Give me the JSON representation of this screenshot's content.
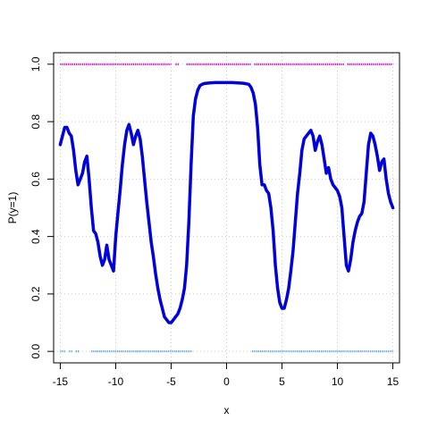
{
  "chart_data": {
    "type": "line",
    "title": "",
    "xlabel": "x",
    "ylabel": "P(y=1)",
    "xlim": [
      -15.6,
      15.6
    ],
    "ylim": [
      -0.04,
      1.04
    ],
    "xticks": [
      -15,
      -10,
      -5,
      0,
      5,
      10,
      15
    ],
    "xtick_labels": [
      "-15",
      "-10",
      "-5",
      "0",
      "5",
      "10",
      "15"
    ],
    "yticks": [
      0.0,
      0.2,
      0.4,
      0.6,
      0.8,
      1.0
    ],
    "ytick_labels": [
      "0.0",
      "0.2",
      "0.4",
      "0.6",
      "0.8",
      "1.0"
    ],
    "grid": true,
    "colors": {
      "curve": "#0000dd",
      "positive": "#dd00dd",
      "negative": "#66aadd",
      "grid": "#cccccc"
    },
    "series": [
      {
        "x": [
          -15,
          -14.8,
          -14.6,
          -14.4,
          -14.2,
          -14,
          -13.8,
          -13.6,
          -13.4,
          -13.2,
          -13,
          -12.8,
          -12.6,
          -12.4,
          -12.2,
          -12,
          -11.8,
          -11.6,
          -11.4,
          -11.2,
          -11,
          -10.8,
          -10.6,
          -10.4,
          -10.2,
          -10,
          -9.8,
          -9.6,
          -9.4,
          -9.2,
          -9,
          -8.8,
          -8.6,
          -8.4,
          -8.2,
          -8,
          -7.8,
          -7.6,
          -7.4,
          -7.2,
          -7,
          -6.8,
          -6.6,
          -6.4,
          -6.2,
          -6,
          -5.8,
          -5.6,
          -5.4,
          -5.2,
          -5,
          -4.8,
          -4.6,
          -4.4,
          -4.2,
          -4,
          -3.8,
          -3.6,
          -3.4,
          -3.2,
          -3,
          -2.8,
          -2.6,
          -2.4,
          -2.2,
          -2,
          -1.5,
          -1,
          -0.5,
          0,
          0.5,
          1,
          1.5,
          2,
          2.2,
          2.4,
          2.6,
          2.8,
          3,
          3.2,
          3.4,
          3.6,
          3.8,
          4,
          4.2,
          4.4,
          4.6,
          4.8,
          5,
          5.2,
          5.4,
          5.6,
          5.8,
          6,
          6.2,
          6.4,
          6.6,
          6.8,
          7,
          7.2,
          7.4,
          7.6,
          7.8,
          8,
          8.2,
          8.4,
          8.6,
          8.8,
          9,
          9.2,
          9.4,
          9.6,
          9.8,
          10,
          10.2,
          10.4,
          10.6,
          10.8,
          11,
          11.2,
          11.4,
          11.6,
          11.8,
          12,
          12.2,
          12.4,
          12.6,
          12.8,
          13,
          13.2,
          13.4,
          13.6,
          13.8,
          14,
          14.2,
          14.4,
          14.6,
          14.8,
          15
        ],
        "y": [
          0.72,
          0.75,
          0.78,
          0.78,
          0.76,
          0.75,
          0.7,
          0.63,
          0.58,
          0.6,
          0.62,
          0.66,
          0.68,
          0.6,
          0.5,
          0.42,
          0.41,
          0.38,
          0.33,
          0.3,
          0.32,
          0.37,
          0.32,
          0.3,
          0.28,
          0.4,
          0.48,
          0.56,
          0.65,
          0.72,
          0.77,
          0.79,
          0.76,
          0.72,
          0.75,
          0.77,
          0.74,
          0.68,
          0.6,
          0.52,
          0.45,
          0.38,
          0.33,
          0.27,
          0.22,
          0.18,
          0.15,
          0.12,
          0.11,
          0.1,
          0.1,
          0.11,
          0.12,
          0.13,
          0.15,
          0.18,
          0.22,
          0.3,
          0.45,
          0.65,
          0.82,
          0.88,
          0.91,
          0.925,
          0.93,
          0.933,
          0.935,
          0.936,
          0.936,
          0.936,
          0.936,
          0.935,
          0.934,
          0.93,
          0.92,
          0.9,
          0.86,
          0.78,
          0.65,
          0.58,
          0.58,
          0.56,
          0.55,
          0.5,
          0.42,
          0.3,
          0.22,
          0.17,
          0.15,
          0.15,
          0.18,
          0.22,
          0.28,
          0.35,
          0.45,
          0.55,
          0.62,
          0.7,
          0.74,
          0.75,
          0.76,
          0.77,
          0.75,
          0.7,
          0.73,
          0.75,
          0.72,
          0.67,
          0.62,
          0.64,
          0.6,
          0.58,
          0.57,
          0.56,
          0.54,
          0.5,
          0.4,
          0.3,
          0.28,
          0.32,
          0.38,
          0.42,
          0.45,
          0.47,
          0.48,
          0.52,
          0.62,
          0.72,
          0.76,
          0.75,
          0.72,
          0.68,
          0.63,
          0.66,
          0.67,
          0.6,
          0.55,
          0.52,
          0.5
        ]
      }
    ],
    "rug": {
      "y1_at": 1.0,
      "y1_segments": [
        [
          -15,
          -5.0
        ],
        [
          -4.6,
          -4.3
        ],
        [
          -3.6,
          2.2
        ],
        [
          2.5,
          10.6
        ],
        [
          10.9,
          15
        ]
      ],
      "y0_at": 0.0,
      "y0_segments": [
        [
          -15,
          -14.5
        ],
        [
          -14.2,
          -13.9
        ],
        [
          -13.6,
          -13.3
        ],
        [
          -12.2,
          -3.1
        ],
        [
          2.3,
          15
        ]
      ]
    }
  }
}
